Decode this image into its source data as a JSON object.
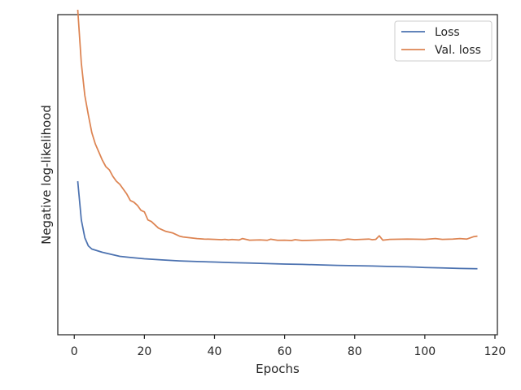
{
  "chart_data": {
    "type": "line",
    "title": "",
    "xlabel": "Epochs",
    "ylabel": "Negative log-likelihood",
    "xlim": [
      -4.7,
      120.7
    ],
    "ylim": [
      -0.08,
      1.9
    ],
    "xticks": [
      0,
      20,
      40,
      60,
      80,
      100,
      120
    ],
    "y_ticks_shown": false,
    "grid": false,
    "legend_position": "upper right",
    "series": [
      {
        "name": "Loss",
        "color": "#4c72b0",
        "x": [
          1,
          2,
          3,
          4,
          5,
          8,
          10,
          13,
          16,
          20,
          25,
          30,
          35,
          40,
          45,
          50,
          55,
          60,
          65,
          70,
          75,
          80,
          85,
          90,
          95,
          100,
          105,
          110,
          115
        ],
        "y": [
          0.87,
          0.63,
          0.52,
          0.47,
          0.45,
          0.43,
          0.42,
          0.405,
          0.398,
          0.39,
          0.383,
          0.377,
          0.373,
          0.37,
          0.366,
          0.363,
          0.36,
          0.357,
          0.355,
          0.352,
          0.349,
          0.347,
          0.345,
          0.342,
          0.34,
          0.336,
          0.333,
          0.33,
          0.328
        ]
      },
      {
        "name": "Val. loss",
        "color": "#dd8452",
        "x": [
          1,
          2,
          3,
          4,
          5,
          6,
          7,
          8,
          9,
          10,
          11,
          12,
          13,
          14,
          15,
          16,
          17,
          18,
          19,
          20,
          21,
          22,
          23,
          24,
          25,
          26,
          27,
          28,
          29,
          30,
          31,
          33,
          35,
          37,
          40,
          42,
          43,
          44,
          45,
          47,
          48,
          50,
          53,
          55,
          56,
          58,
          60,
          62,
          63,
          65,
          70,
          74,
          76,
          78,
          80,
          82,
          84,
          85,
          86,
          87,
          88,
          90,
          95,
          100,
          103,
          105,
          108,
          110,
          112,
          114,
          115
        ],
        "y": [
          1.93,
          1.6,
          1.4,
          1.28,
          1.17,
          1.1,
          1.05,
          1.0,
          0.96,
          0.94,
          0.9,
          0.87,
          0.85,
          0.82,
          0.79,
          0.75,
          0.74,
          0.72,
          0.69,
          0.68,
          0.63,
          0.62,
          0.6,
          0.58,
          0.57,
          0.56,
          0.555,
          0.55,
          0.54,
          0.53,
          0.525,
          0.52,
          0.515,
          0.512,
          0.51,
          0.508,
          0.51,
          0.507,
          0.509,
          0.506,
          0.515,
          0.505,
          0.507,
          0.504,
          0.511,
          0.504,
          0.505,
          0.503,
          0.508,
          0.503,
          0.506,
          0.508,
          0.505,
          0.512,
          0.508,
          0.51,
          0.512,
          0.508,
          0.51,
          0.532,
          0.505,
          0.51,
          0.512,
          0.51,
          0.515,
          0.51,
          0.512,
          0.515,
          0.512,
          0.527,
          0.53
        ]
      }
    ]
  }
}
